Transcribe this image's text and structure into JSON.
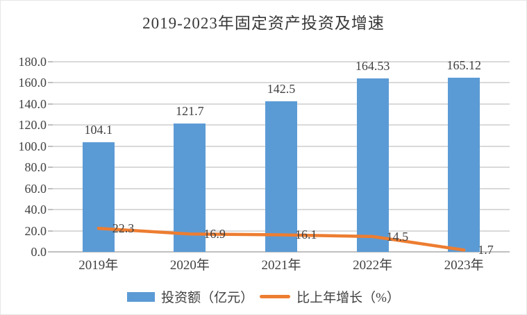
{
  "chart_data": {
    "type": "bar",
    "combo": "bar+line",
    "title": "2019-2023年固定资产投资及增速",
    "categories": [
      "2019年",
      "2020年",
      "2021年",
      "2022年",
      "2023年"
    ],
    "series": [
      {
        "name": "投资额（亿元）",
        "type": "bar",
        "color": "#5B9BD5",
        "values": [
          104.1,
          121.7,
          142.5,
          164.53,
          165.12
        ],
        "labels": [
          "104.1",
          "121.7",
          "142.5",
          "164.53",
          "165.12"
        ]
      },
      {
        "name": "比上年增长（%）",
        "type": "line",
        "color": "#ED7D31",
        "values": [
          22.3,
          16.9,
          16.1,
          14.5,
          1.7
        ],
        "labels": [
          "22.3",
          "16.9",
          "16.1",
          "14.5",
          "1.7"
        ]
      }
    ],
    "y_axis": {
      "min": 0,
      "max": 180,
      "step": 20,
      "tick_labels": [
        "180.0",
        "160.0",
        "140.0",
        "120.0",
        "100.0",
        "80.0",
        "60.0",
        "40.0",
        "20.0",
        "0.0"
      ]
    },
    "xlabel": "",
    "ylabel": "",
    "grid": true,
    "grid_color": "#D9D9D9",
    "axis_color": "#BFBFBF",
    "text_color": "#404040",
    "legend_position": "bottom"
  }
}
